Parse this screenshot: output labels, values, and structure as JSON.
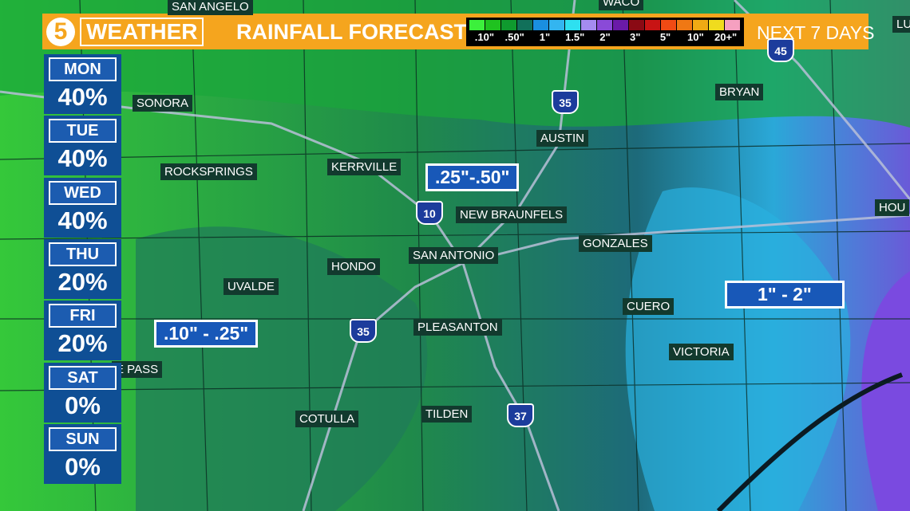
{
  "header": {
    "logo": "5",
    "brand": "WEATHER",
    "title": "RAINFALL FORECAST",
    "period": "NEXT 7 DAYS"
  },
  "legend": {
    "colors": [
      "#3cf03c",
      "#1fc21f",
      "#0f9a2e",
      "#11705a",
      "#1a8fe0",
      "#33b5f0",
      "#2ee0f0",
      "#a58cf0",
      "#8a4ad8",
      "#6a1aa8",
      "#8a0a14",
      "#c81414",
      "#f04a14",
      "#f07814",
      "#f0aa14",
      "#f0dc1e",
      "#f5a0c0"
    ],
    "labels": [
      ".10\"",
      ".50\"",
      "1\"",
      "1.5\"",
      "2\"",
      "3\"",
      "5\"",
      "10\"",
      "20+\""
    ]
  },
  "days": [
    {
      "day": "MON",
      "chance": "40%"
    },
    {
      "day": "TUE",
      "chance": "40%"
    },
    {
      "day": "WED",
      "chance": "40%"
    },
    {
      "day": "THU",
      "chance": "20%"
    },
    {
      "day": "FRI",
      "chance": "20%"
    },
    {
      "day": "SAT",
      "chance": "0%"
    },
    {
      "day": "SUN",
      "chance": "0%"
    }
  ],
  "cities": [
    "SAN ANGELO",
    "WACO",
    "SONORA",
    "BRYAN",
    "AUSTIN",
    "ROCKSPRINGS",
    "KERRVILLE",
    "NEW BRAUNFELS",
    "HOU",
    "SAN ANTONIO",
    "GONZALES",
    "HONDO",
    "UVALDE",
    "CUERO",
    "PLEASANTON",
    "VICTORIA",
    "E PASS",
    "COTULLA",
    "TILDEN",
    "LU"
  ],
  "highways": [
    "35",
    "10",
    "35",
    "37",
    "45"
  ],
  "ranges": [
    ".25\"-.50\"",
    "1\" - 2\"",
    ".10\" - .25\""
  ]
}
